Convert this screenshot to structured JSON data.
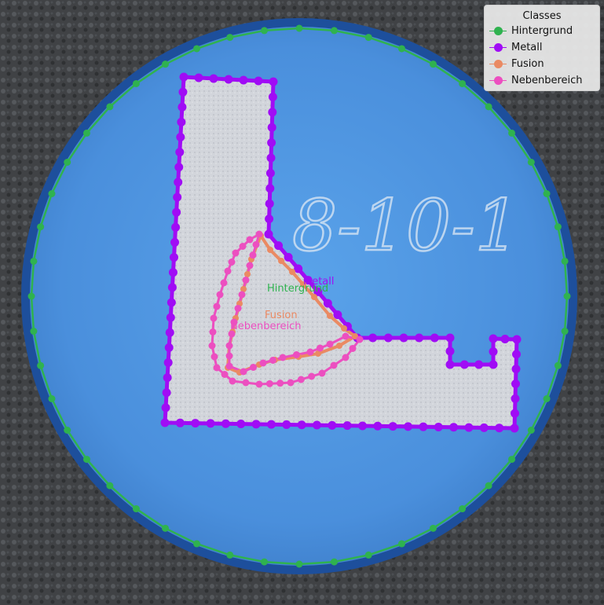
{
  "specimen_label": "8-10-1",
  "legend": {
    "title": "Classes",
    "items": [
      {
        "label": "Hintergrund",
        "color": "#2fb24f",
        "icon": "dot-marker"
      },
      {
        "label": "Metall",
        "color": "#a00cf5",
        "icon": "dot-marker"
      },
      {
        "label": "Fusion",
        "color": "#ea8a63",
        "icon": "dot-marker"
      },
      {
        "label": "Nebenbereich",
        "color": "#ec4fc0",
        "icon": "dot-marker"
      }
    ]
  },
  "region_labels": {
    "metall": "Metall",
    "hintergrund": "Hintergrund",
    "fusion": "Fusion",
    "nebenbereich": "Nebenbereich"
  },
  "colors": {
    "background": "#2fb24f",
    "metall": "#a00cf5",
    "fusion": "#ea8a63",
    "nebenbereich": "#ec4fc0",
    "resin": "#4a94e0",
    "metal_surface": "#d3d6dc"
  }
}
